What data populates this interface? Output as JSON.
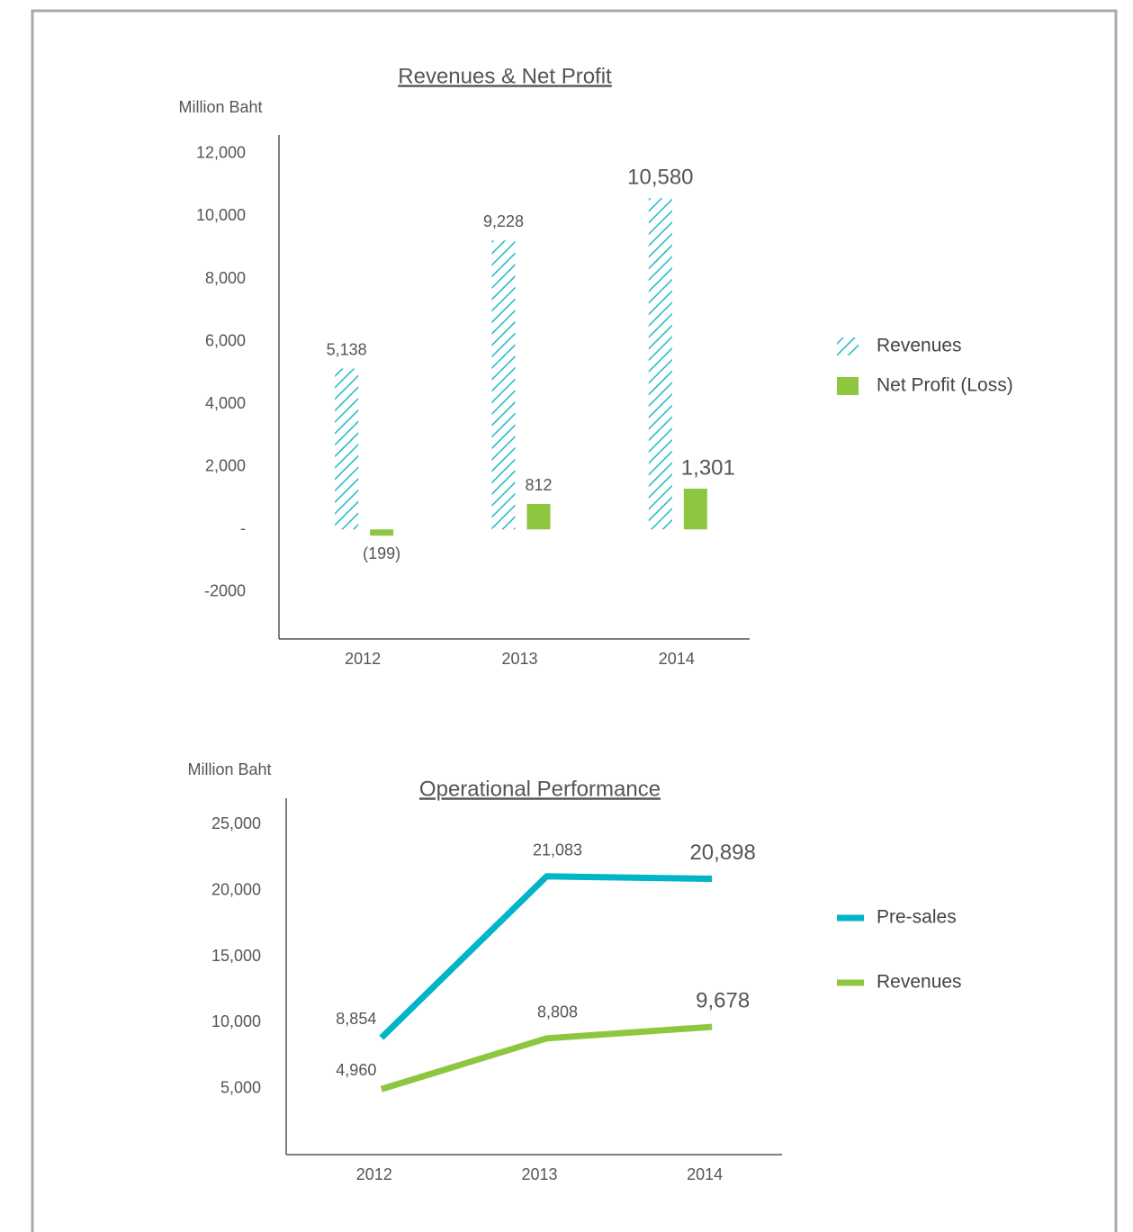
{
  "chart_data": [
    {
      "type": "bar",
      "title": "Revenues & Net Profit",
      "y_label": "Million Baht",
      "categories": [
        "2012",
        "2013",
        "2014"
      ],
      "series": [
        {
          "name": "Revenues",
          "color": "#1fb8c9",
          "hatch": true,
          "values": [
            5138,
            9228,
            10580
          ],
          "value_labels": [
            "5,138",
            "9,228",
            "10,580"
          ]
        },
        {
          "name": "Net Profit (Loss)",
          "color": "#8dc63f",
          "values": [
            -199,
            812,
            1301
          ],
          "value_labels": [
            "(199)",
            "812",
            "1,301"
          ]
        }
      ],
      "ylim": [
        -3500,
        12600
      ],
      "yticks": [
        {
          "value": 12000,
          "label": "12,000"
        },
        {
          "value": 10000,
          "label": "10,000"
        },
        {
          "value": 8000,
          "label": "8,000"
        },
        {
          "value": 6000,
          "label": "6,000"
        },
        {
          "value": 4000,
          "label": "4,000"
        },
        {
          "value": 2000,
          "label": "2,000"
        },
        {
          "value": 0,
          "label": "-"
        },
        -2000
      ],
      "grid": false,
      "legend": "right"
    },
    {
      "type": "line",
      "title": "Operational Performance",
      "y_label": "Million Baht",
      "categories": [
        "2012",
        "2013",
        "2014"
      ],
      "series": [
        {
          "name": "Pre-sales",
          "color": "#00b5c8",
          "values": [
            8854,
            21083,
            20898
          ],
          "value_labels": [
            "8,854",
            "21,083",
            "20,898"
          ]
        },
        {
          "name": "Revenues",
          "color": "#8dc63f",
          "values": [
            4960,
            8808,
            9678
          ],
          "value_labels": [
            "4,960",
            "8,808",
            "9,678"
          ]
        }
      ],
      "ylim": [
        0,
        27000
      ],
      "yticks": [
        {
          "value": 25000,
          "label": "25,000"
        },
        {
          "value": 20000,
          "label": "20,000"
        },
        {
          "value": 15000,
          "label": "15,000"
        },
        {
          "value": 10000,
          "label": "10,000"
        },
        {
          "value": 5000,
          "label": "5,000"
        }
      ],
      "grid": false,
      "legend": "right"
    }
  ]
}
